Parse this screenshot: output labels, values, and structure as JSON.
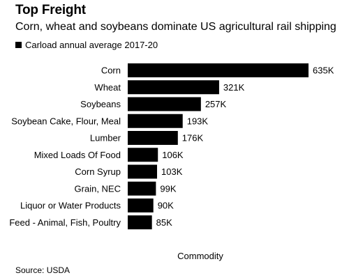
{
  "header": {
    "title": "Top Freight",
    "subtitle": "Corn, wheat and soybeans dominate US agricultural rail shipping"
  },
  "footer": {
    "source": "Source: USDA"
  },
  "chart_data": {
    "type": "bar",
    "orientation": "horizontal",
    "title": "Top Freight",
    "subtitle": "Corn, wheat and soybeans dominate US agricultural rail shipping",
    "xlabel": "Commodity",
    "ylabel": "",
    "legend": {
      "position": "top-left",
      "entries": [
        "Carload annual average 2017-20"
      ]
    },
    "grid": false,
    "xlim": [
      0,
      635000
    ],
    "color": "#000000",
    "categories": [
      "Corn",
      "Wheat",
      "Soybeans",
      "Soybean Cake, Flour, Meal",
      "Lumber",
      "Mixed Loads Of Food",
      "Corn Syrup",
      "Grain, NEC",
      "Liquor or Water Products",
      "Feed - Animal, Fish, Poultry"
    ],
    "series": [
      {
        "name": "Carload annual average 2017-20",
        "values": [
          635000,
          321000,
          257000,
          193000,
          176000,
          106000,
          103000,
          99000,
          90000,
          85000
        ],
        "labels": [
          "635K",
          "321K",
          "257K",
          "193K",
          "176K",
          "106K",
          "103K",
          "99K",
          "90K",
          "85K"
        ]
      }
    ]
  }
}
